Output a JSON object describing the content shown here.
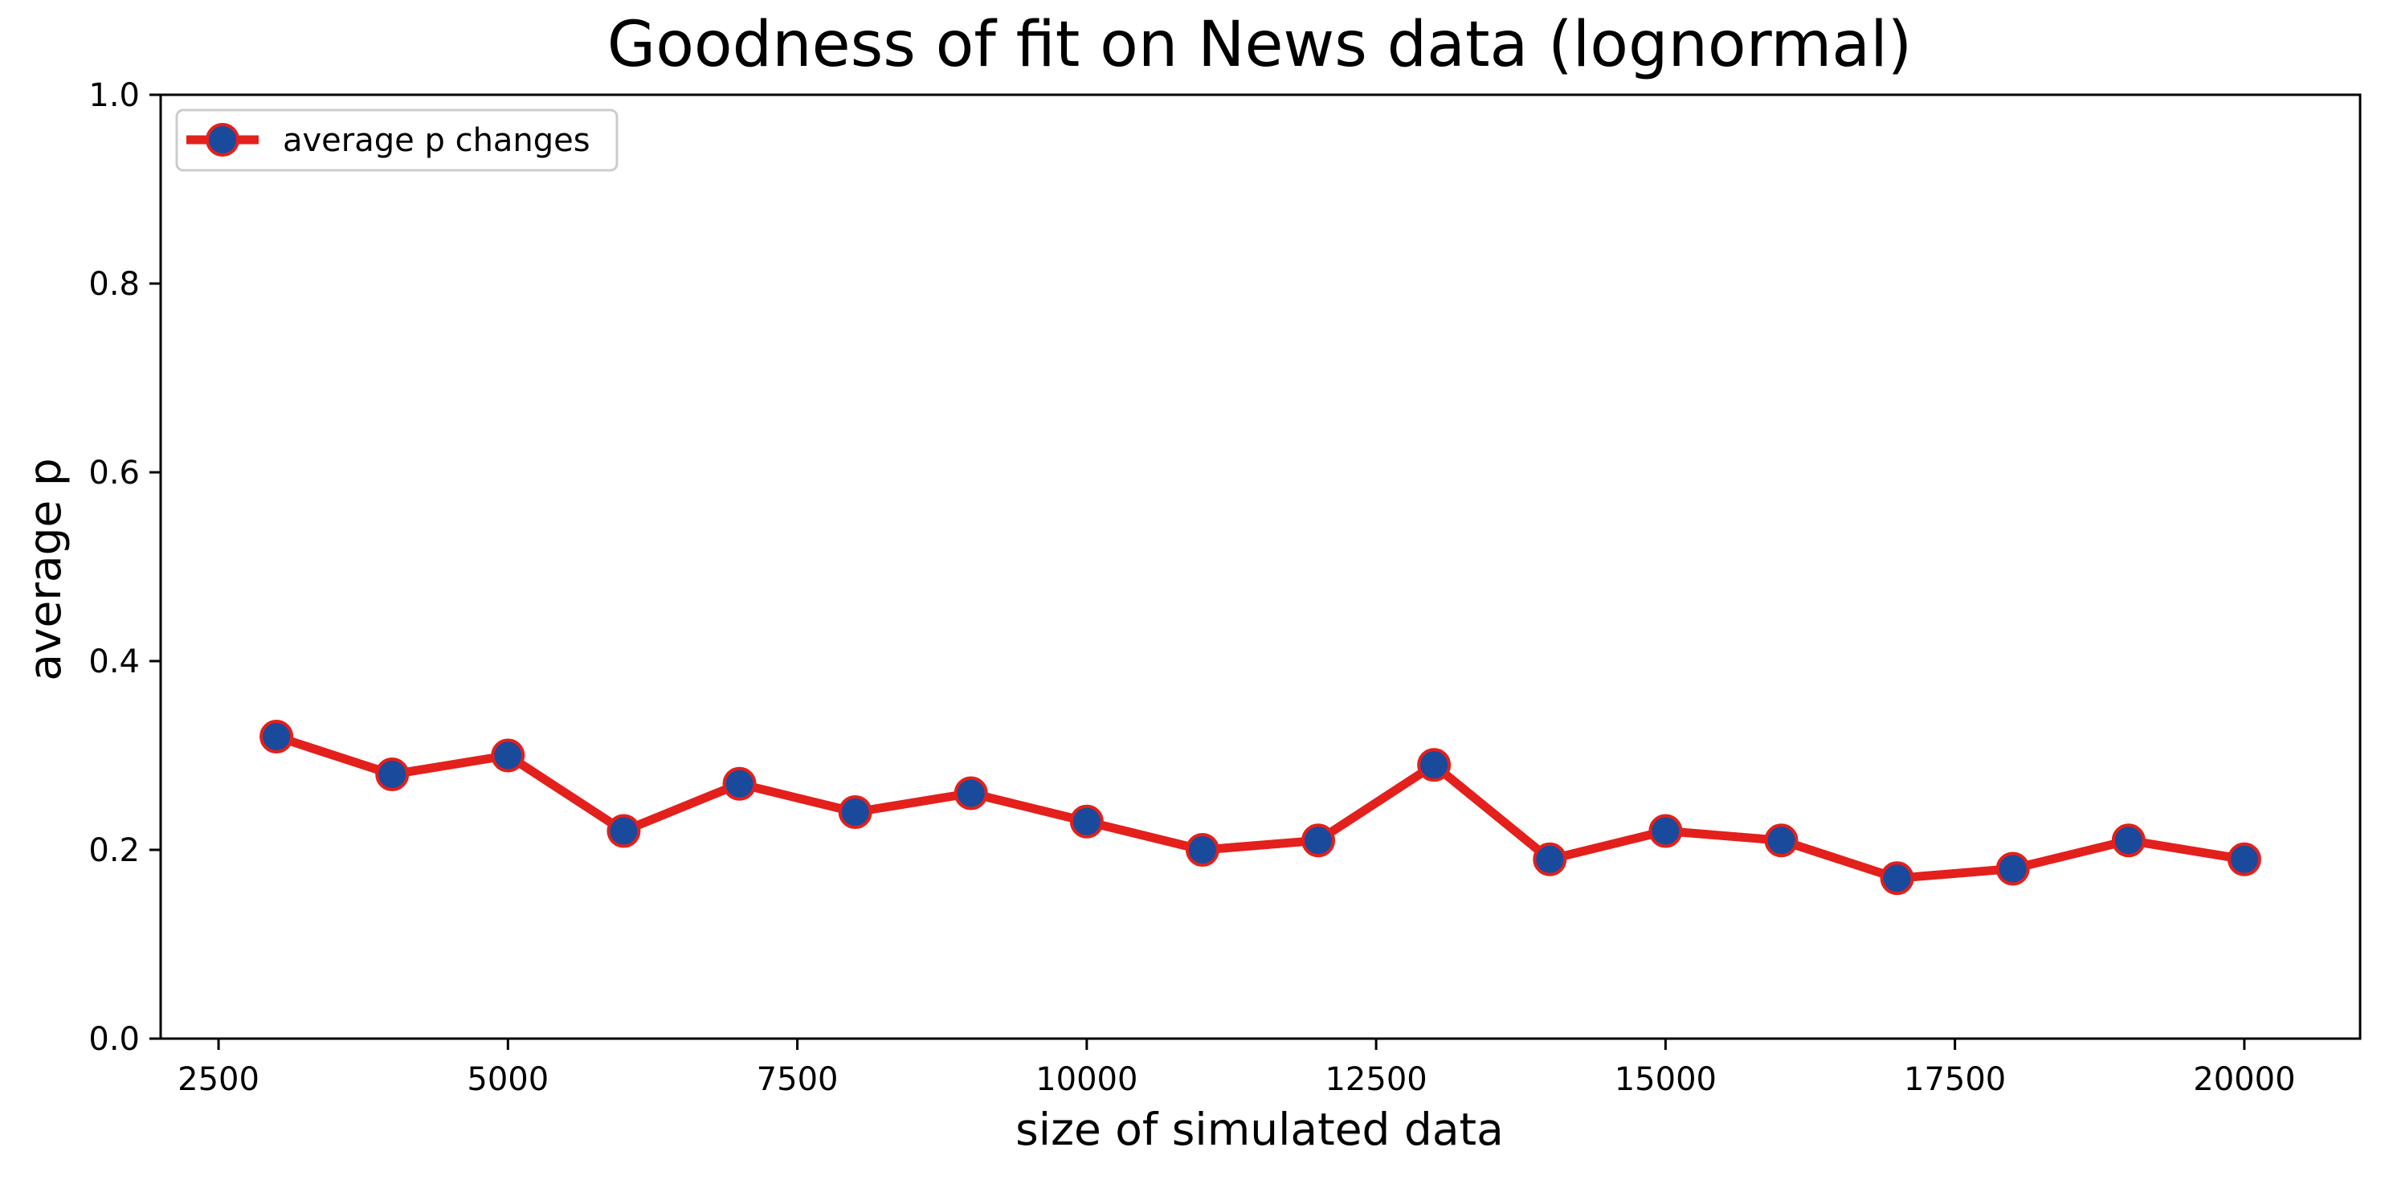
{
  "chart_data": {
    "type": "line",
    "title": "Goodness of fit on News data (lognormal)",
    "xlabel": "size of simulated data",
    "ylabel": "average p",
    "xlim": [
      2000,
      21000
    ],
    "ylim": [
      0,
      1.0
    ],
    "x_ticks": [
      2500,
      5000,
      7500,
      10000,
      12500,
      15000,
      17500,
      20000
    ],
    "x_tick_labels": [
      "2500",
      "5000",
      "7500",
      "10000",
      "12500",
      "15000",
      "17500",
      "20000"
    ],
    "y_ticks": [
      0.0,
      0.2,
      0.4,
      0.6,
      0.8,
      1.0
    ],
    "y_tick_labels": [
      "0.0",
      "0.2",
      "0.4",
      "0.6",
      "0.8",
      "1.0"
    ],
    "grid": false,
    "legend_position": "upper-left",
    "series": [
      {
        "name": "average p changes",
        "line_color": "#e3201b",
        "marker_color": "#1a4a9c",
        "marker_edge_color": "#e3201b",
        "x": [
          3000,
          4000,
          5000,
          6000,
          7000,
          8000,
          9000,
          10000,
          11000,
          12000,
          13000,
          14000,
          15000,
          16000,
          17000,
          18000,
          19000,
          20000
        ],
        "y": [
          0.32,
          0.28,
          0.3,
          0.22,
          0.27,
          0.24,
          0.26,
          0.23,
          0.2,
          0.21,
          0.29,
          0.19,
          0.22,
          0.21,
          0.17,
          0.18,
          0.21,
          0.19
        ]
      }
    ]
  }
}
